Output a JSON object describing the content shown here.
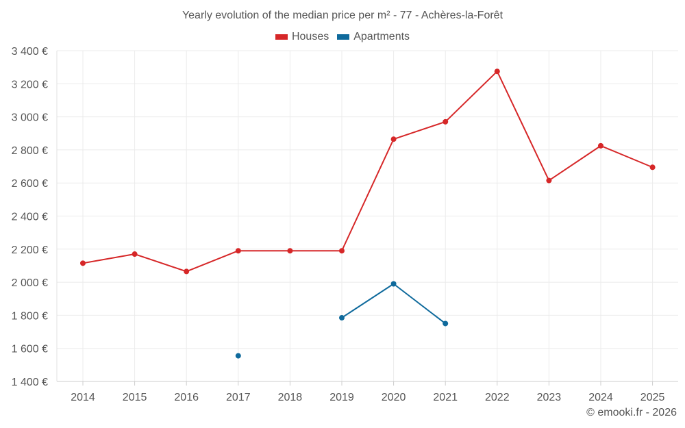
{
  "chart_data": {
    "type": "line",
    "title": "Yearly evolution of the median price per m² - 77 - Achères-la-Forêt",
    "xlabel": "",
    "ylabel": "",
    "categories": [
      "2014",
      "2015",
      "2016",
      "2017",
      "2018",
      "2019",
      "2020",
      "2021",
      "2022",
      "2023",
      "2024",
      "2025"
    ],
    "ylim": [
      1400,
      3400
    ],
    "yticks": [
      1400,
      1600,
      1800,
      2000,
      2200,
      2400,
      2600,
      2800,
      3000,
      3200,
      3400
    ],
    "ytick_labels": [
      "1 400 €",
      "1 600 €",
      "1 800 €",
      "2 000 €",
      "2 200 €",
      "2 400 €",
      "2 600 €",
      "2 800 €",
      "3 000 €",
      "3 200 €",
      "3 400 €"
    ],
    "grid": true,
    "legend_position": "top-center",
    "series": [
      {
        "name": "Houses",
        "color": "#d62728",
        "values": [
          2115,
          2170,
          2065,
          2190,
          2190,
          2190,
          2865,
          2970,
          3275,
          2615,
          2825,
          2695
        ]
      },
      {
        "name": "Apartments",
        "color": "#0f6a9c",
        "values": [
          null,
          null,
          null,
          1555,
          null,
          1785,
          1990,
          1750,
          null,
          null,
          null,
          null
        ]
      }
    ]
  },
  "legend": {
    "houses": "Houses",
    "apartments": "Apartments"
  },
  "credit": "© emooki.fr - 2026"
}
